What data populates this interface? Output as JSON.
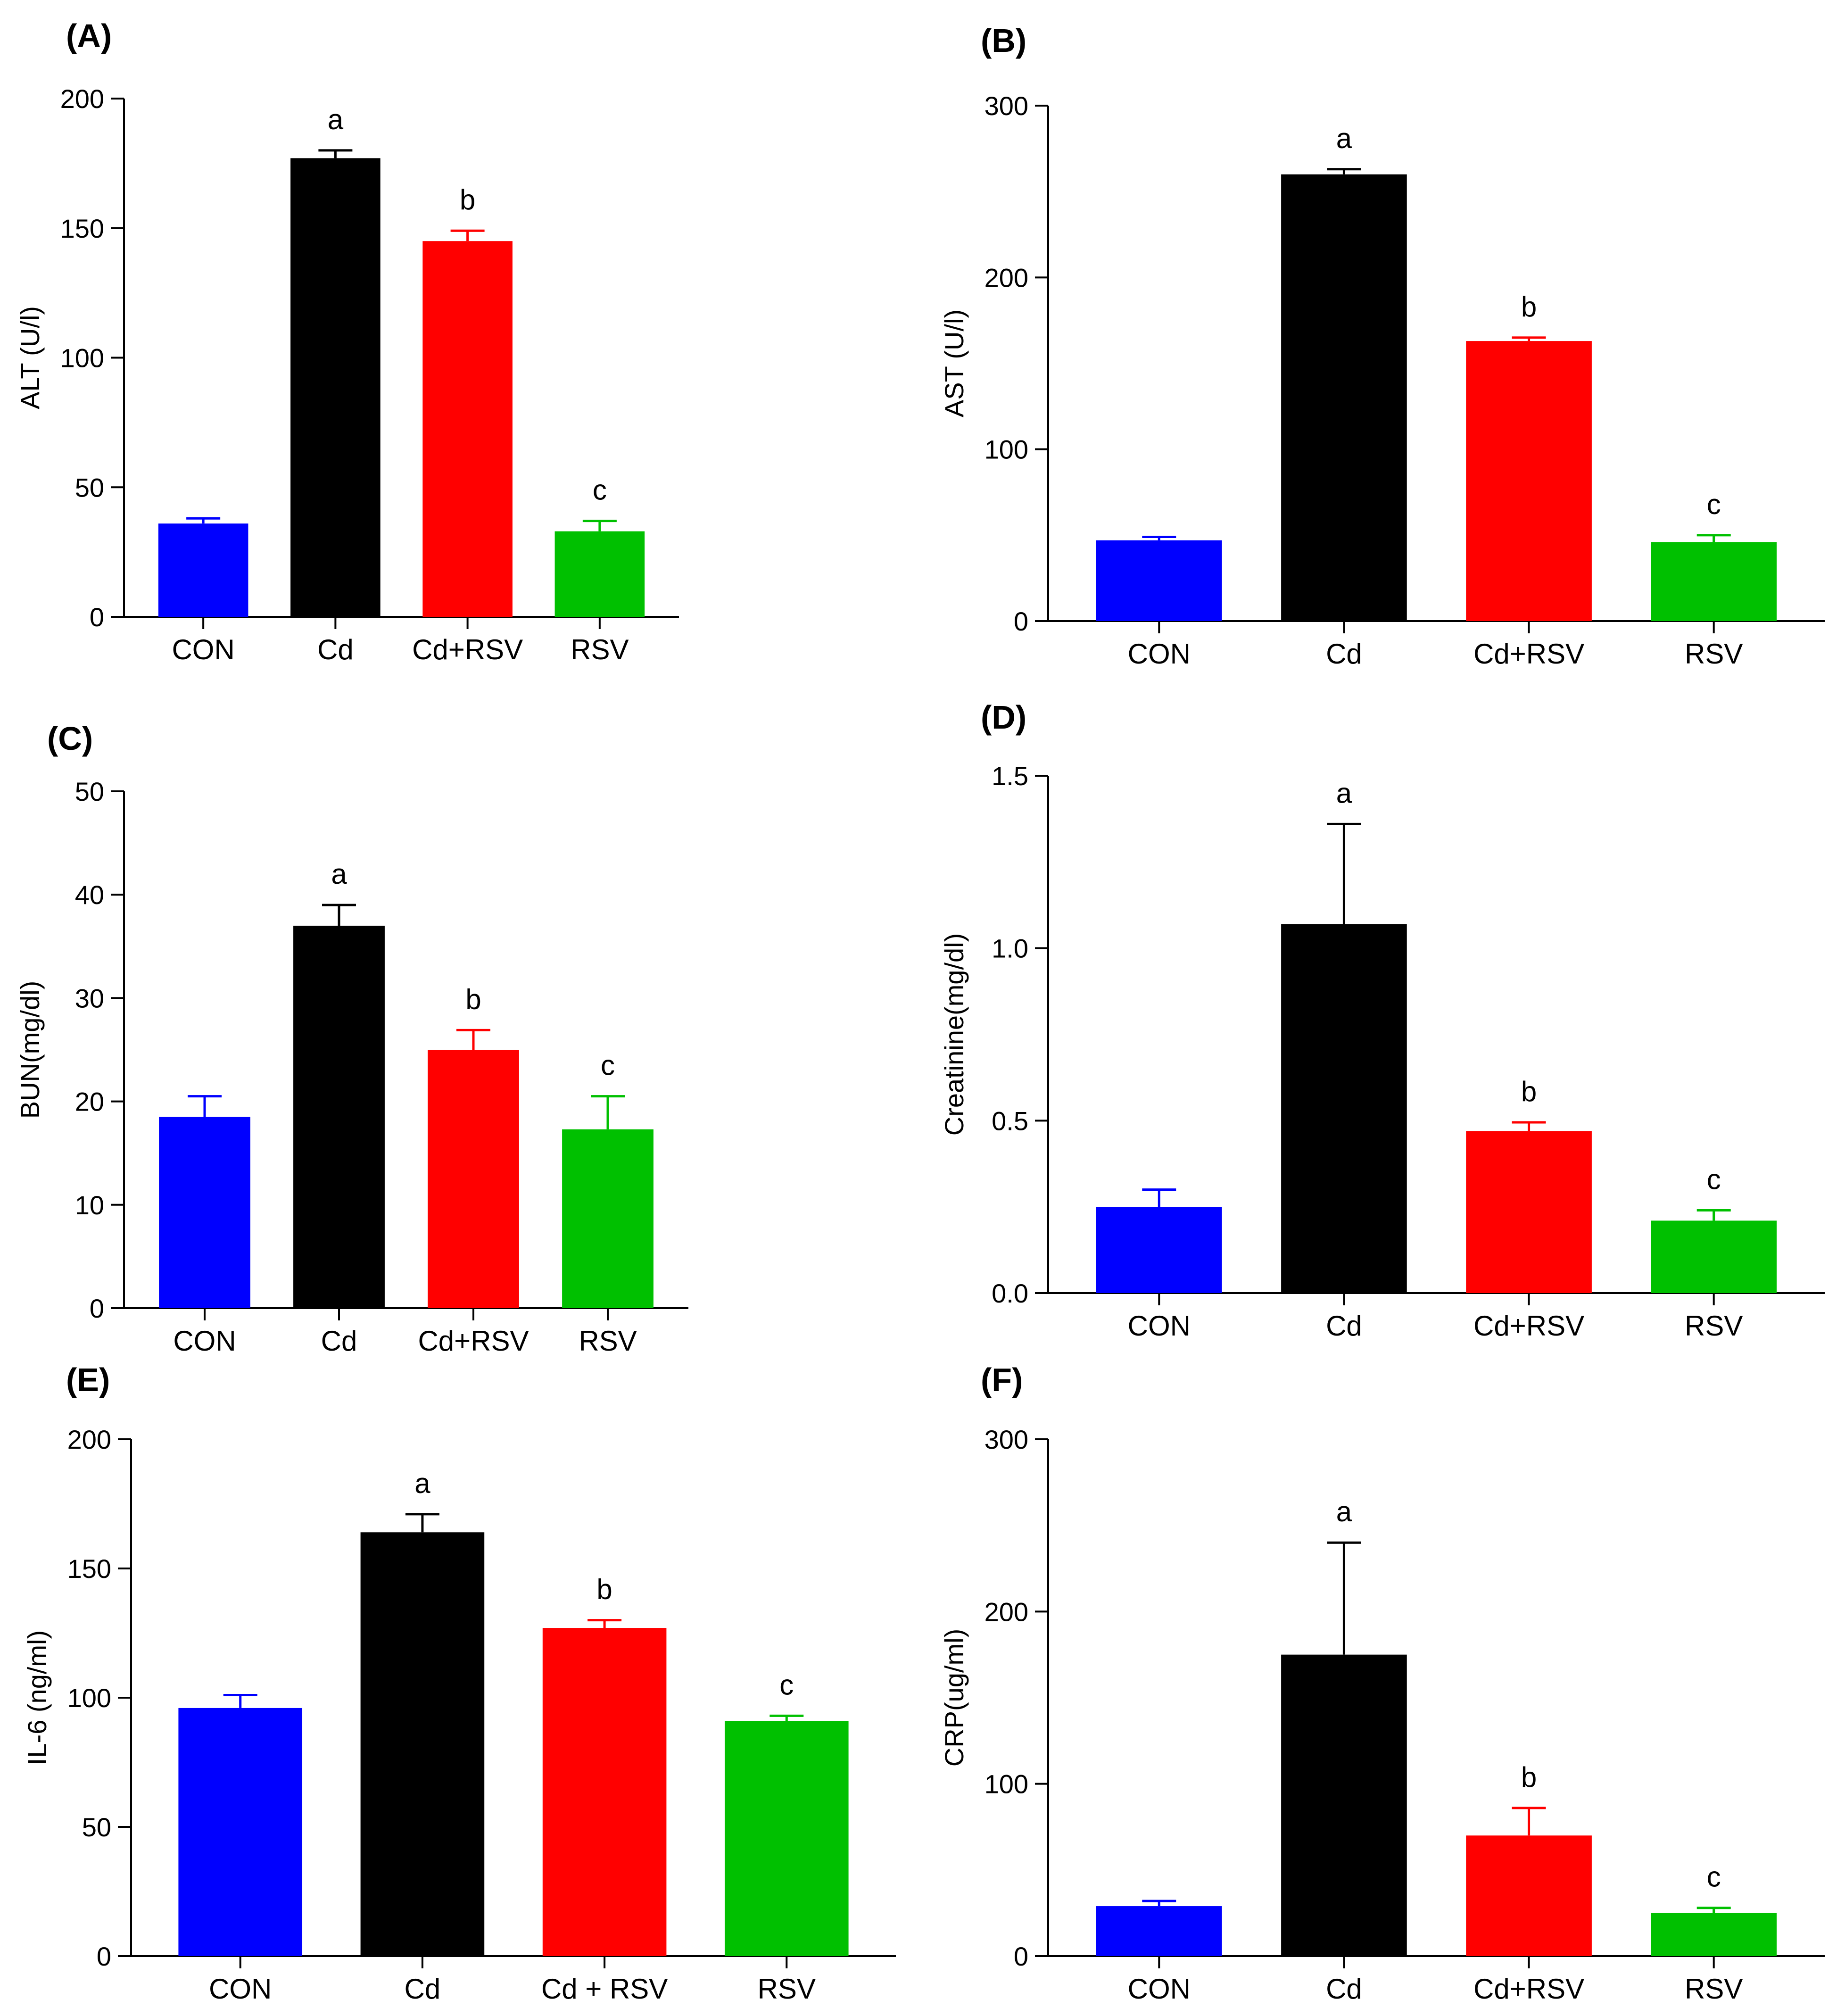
{
  "colors": {
    "CON": "#0000ff",
    "Cd": "#000000",
    "Cd+RSV": "#ff0000",
    "RSV": "#00c000"
  },
  "chart_data": [
    {
      "type": "bar",
      "panel_label": "(A)",
      "ylabel": "ALT (U/l)",
      "ylim": [
        0,
        200
      ],
      "yticks": [
        0,
        50,
        100,
        150,
        200
      ],
      "tick_labels": [
        "0",
        "50",
        "100",
        "150",
        "200"
      ],
      "categories": [
        "CON",
        "Cd",
        "Cd+RSV",
        "RSV"
      ],
      "values": [
        36,
        177,
        145,
        33
      ],
      "errors": [
        2,
        3,
        4,
        4
      ],
      "significance": [
        "",
        "a",
        "b",
        "c"
      ]
    },
    {
      "type": "bar",
      "panel_label": "(B)",
      "ylabel": "AST (U/l)",
      "ylim": [
        0,
        300
      ],
      "yticks": [
        0,
        100,
        200,
        300
      ],
      "tick_labels": [
        "0",
        "100",
        "200",
        "300"
      ],
      "categories": [
        "CON",
        "Cd",
        "Cd+RSV",
        "RSV"
      ],
      "values": [
        47,
        260,
        163,
        46
      ],
      "errors": [
        2,
        3,
        2,
        4
      ],
      "significance": [
        "",
        "a",
        "b",
        "c"
      ]
    },
    {
      "type": "bar",
      "panel_label": "(C)",
      "ylabel": "BUN(mg/dl)",
      "ylim": [
        0,
        50
      ],
      "yticks": [
        0,
        10,
        20,
        30,
        40,
        50
      ],
      "tick_labels": [
        "0",
        "10",
        "20",
        "30",
        "40",
        "50"
      ],
      "categories": [
        "CON",
        "Cd",
        "Cd+RSV",
        "RSV"
      ],
      "values": [
        18.5,
        37,
        25,
        17.3
      ],
      "errors": [
        2,
        2,
        1.9,
        3.2
      ],
      "significance": [
        "",
        "a",
        "b",
        "c"
      ]
    },
    {
      "type": "bar",
      "panel_label": "(D)",
      "ylabel": "Creatinine(mg/dl)",
      "ylim": [
        0,
        1.5
      ],
      "yticks": [
        0,
        0.5,
        1.0,
        1.5
      ],
      "tick_labels": [
        "0.0",
        "0.5",
        "1.0",
        "1.5"
      ],
      "categories": [
        "CON",
        "Cd",
        "Cd+RSV",
        "RSV"
      ],
      "values": [
        0.25,
        1.07,
        0.47,
        0.21
      ],
      "errors": [
        0.05,
        0.29,
        0.025,
        0.03
      ],
      "significance": [
        "",
        "a",
        "b",
        "c"
      ]
    },
    {
      "type": "bar",
      "panel_label": "(E)",
      "ylabel": "IL-6 (ng/ml)",
      "ylim": [
        0,
        200
      ],
      "yticks": [
        0,
        50,
        100,
        150,
        200
      ],
      "tick_labels": [
        "0",
        "50",
        "100",
        "150",
        "200"
      ],
      "categories": [
        "CON",
        "Cd",
        "Cd + RSV",
        "RSV"
      ],
      "values": [
        96,
        164,
        127,
        91
      ],
      "errors": [
        5,
        7,
        3,
        2
      ],
      "significance": [
        "",
        "a",
        "b",
        "c"
      ]
    },
    {
      "type": "bar",
      "panel_label": "(F)",
      "ylabel": "CRP(ug/ml)",
      "ylim": [
        0,
        300
      ],
      "yticks": [
        0,
        100,
        200,
        300
      ],
      "tick_labels": [
        "0",
        "100",
        "200",
        "300"
      ],
      "categories": [
        "CON",
        "Cd",
        "Cd+RSV",
        "RSV"
      ],
      "values": [
        29,
        175,
        70,
        25
      ],
      "errors": [
        3,
        65,
        16,
        3
      ],
      "significance": [
        "",
        "a",
        "b",
        "c"
      ]
    }
  ]
}
